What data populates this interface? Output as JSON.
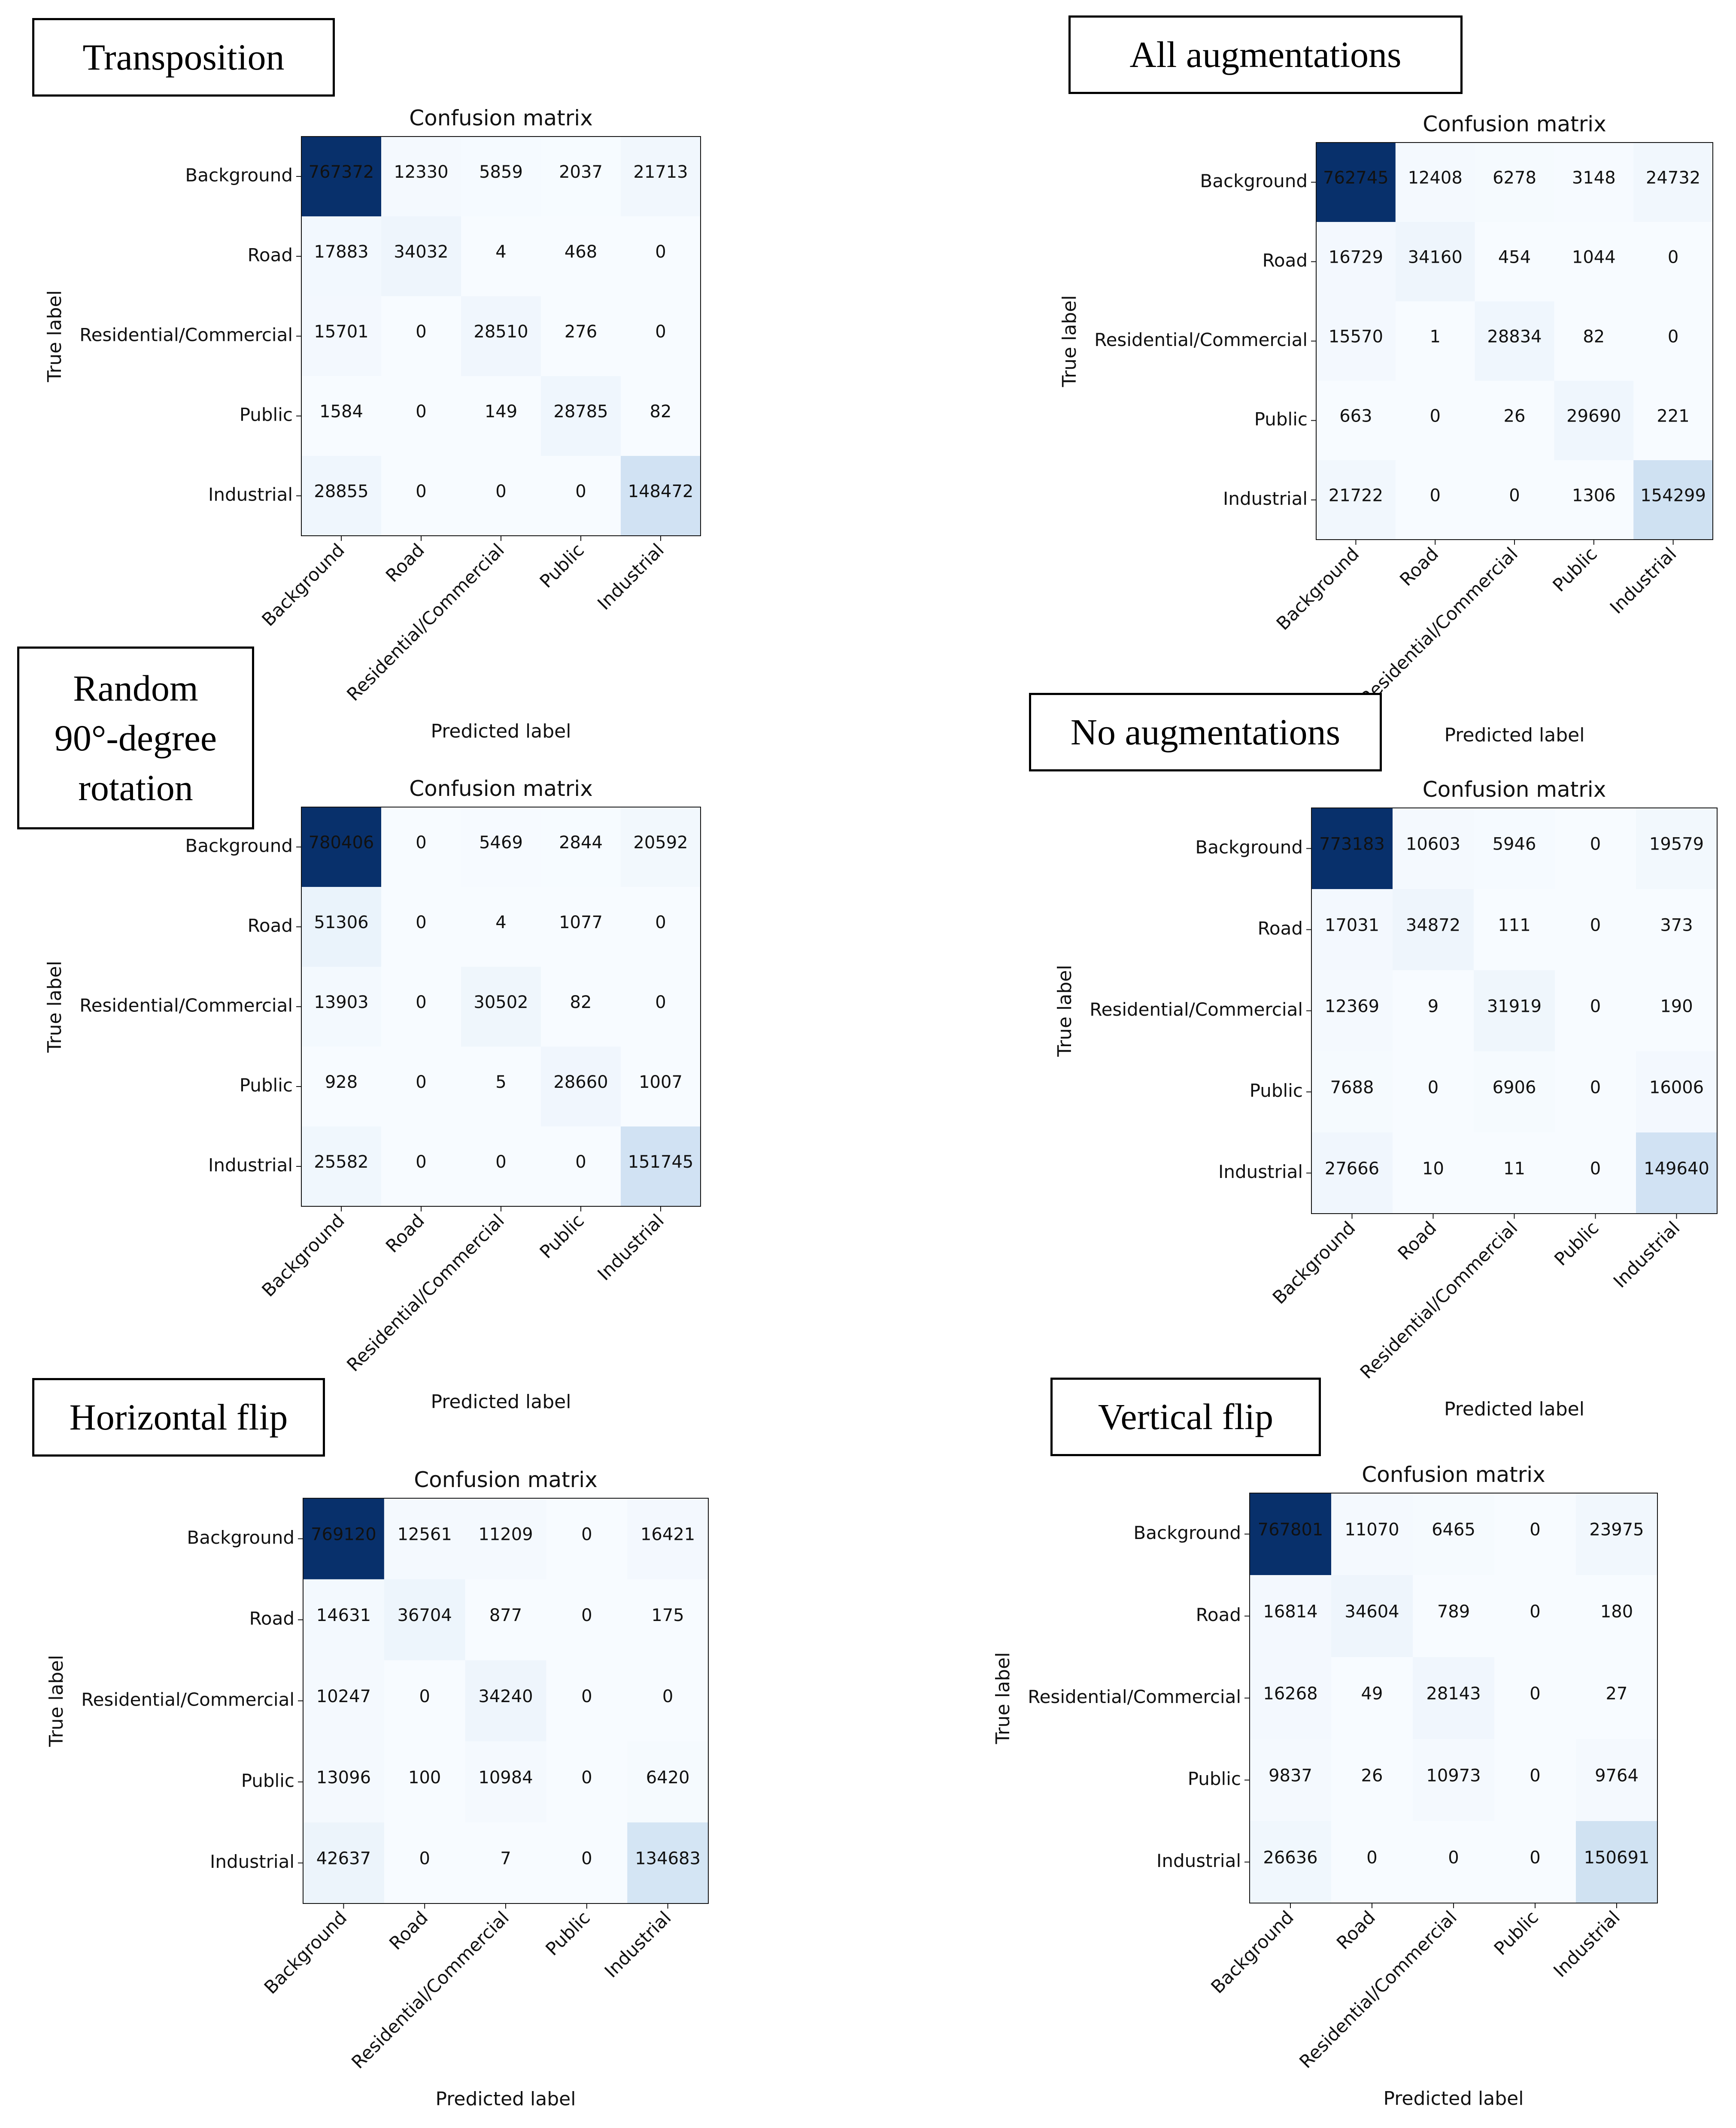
{
  "labels": {
    "classes": [
      "Background",
      "Road",
      "Residential/Commercial",
      "Public",
      "Industrial"
    ],
    "ylabel": "True label",
    "xlabel": "Predicted label",
    "title": "Confusion matrix"
  },
  "colors": {
    "cmap_low": "#f7fbff",
    "cmap_high": "#08306b",
    "text_light": "#ffffff",
    "text_dark": "#111111"
  },
  "chart_data": [
    {
      "type": "heatmap",
      "caption": "Transposition",
      "title": "Confusion matrix",
      "xlabel": "Predicted label",
      "ylabel": "True label",
      "categories": [
        "Background",
        "Road",
        "Residential/Commercial",
        "Public",
        "Industrial"
      ],
      "matrix": [
        [
          767372,
          12330,
          5859,
          2037,
          21713
        ],
        [
          17883,
          34032,
          4,
          468,
          0
        ],
        [
          15701,
          0,
          28510,
          276,
          0
        ],
        [
          1584,
          0,
          149,
          28785,
          82
        ],
        [
          28855,
          0,
          0,
          0,
          148472
        ]
      ]
    },
    {
      "type": "heatmap",
      "caption": "All augmentations",
      "title": "Confusion matrix",
      "xlabel": "Predicted label",
      "ylabel": "True label",
      "categories": [
        "Background",
        "Road",
        "Residential/Commercial",
        "Public",
        "Industrial"
      ],
      "matrix": [
        [
          762745,
          12408,
          6278,
          3148,
          24732
        ],
        [
          16729,
          34160,
          454,
          1044,
          0
        ],
        [
          15570,
          1,
          28834,
          82,
          0
        ],
        [
          663,
          0,
          26,
          29690,
          221
        ],
        [
          21722,
          0,
          0,
          1306,
          154299
        ]
      ]
    },
    {
      "type": "heatmap",
      "caption": "Random 90°-degree rotation",
      "caption_lines": [
        "Random",
        "90°-degree",
        "rotation"
      ],
      "title": "Confusion matrix",
      "xlabel": "Predicted label",
      "ylabel": "True label",
      "categories": [
        "Background",
        "Road",
        "Residential/Commercial",
        "Public",
        "Industrial"
      ],
      "matrix": [
        [
          780406,
          0,
          5469,
          2844,
          20592
        ],
        [
          51306,
          0,
          4,
          1077,
          0
        ],
        [
          13903,
          0,
          30502,
          82,
          0
        ],
        [
          928,
          0,
          5,
          28660,
          1007
        ],
        [
          25582,
          0,
          0,
          0,
          151745
        ]
      ]
    },
    {
      "type": "heatmap",
      "caption": "No augmentations",
      "title": "Confusion matrix",
      "xlabel": "Predicted label",
      "ylabel": "True label",
      "categories": [
        "Background",
        "Road",
        "Residential/Commercial",
        "Public",
        "Industrial"
      ],
      "matrix": [
        [
          773183,
          10603,
          5946,
          0,
          19579
        ],
        [
          17031,
          34872,
          111,
          0,
          373
        ],
        [
          12369,
          9,
          31919,
          0,
          190
        ],
        [
          7688,
          0,
          6906,
          0,
          16006
        ],
        [
          27666,
          10,
          11,
          0,
          149640
        ]
      ]
    },
    {
      "type": "heatmap",
      "caption": "Horizontal flip",
      "title": "Confusion matrix",
      "xlabel": "Predicted label",
      "ylabel": "True label",
      "categories": [
        "Background",
        "Road",
        "Residential/Commercial",
        "Public",
        "Industrial"
      ],
      "matrix": [
        [
          769120,
          12561,
          11209,
          0,
          16421
        ],
        [
          14631,
          36704,
          877,
          0,
          175
        ],
        [
          10247,
          0,
          34240,
          0,
          0
        ],
        [
          13096,
          100,
          10984,
          0,
          6420
        ],
        [
          42637,
          0,
          7,
          0,
          134683
        ]
      ]
    },
    {
      "type": "heatmap",
      "caption": "Vertical flip",
      "title": "Confusion matrix",
      "xlabel": "Predicted label",
      "ylabel": "True label",
      "categories": [
        "Background",
        "Road",
        "Residential/Commercial",
        "Public",
        "Industrial"
      ],
      "matrix": [
        [
          767801,
          11070,
          6465,
          0,
          23975
        ],
        [
          16814,
          34604,
          789,
          0,
          180
        ],
        [
          16268,
          49,
          28143,
          0,
          27
        ],
        [
          9837,
          26,
          10973,
          0,
          9764
        ],
        [
          26636,
          0,
          0,
          0,
          150691
        ]
      ]
    }
  ]
}
